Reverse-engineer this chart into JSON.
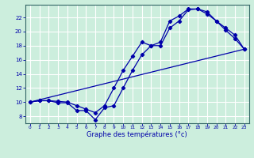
{
  "xlabel": "Graphe des températures (°c)",
  "bg_color": "#cceedd",
  "grid_color": "#aaddcc",
  "line_color": "#0000aa",
  "x_ticks": [
    0,
    1,
    2,
    3,
    4,
    5,
    6,
    7,
    8,
    9,
    10,
    11,
    12,
    13,
    14,
    15,
    16,
    17,
    18,
    19,
    20,
    21,
    22,
    23
  ],
  "y_ticks": [
    8,
    10,
    12,
    14,
    16,
    18,
    20,
    22
  ],
  "xlim": [
    -0.5,
    23.5
  ],
  "ylim": [
    7.0,
    23.8
  ],
  "series1_x": [
    0,
    1,
    2,
    3,
    4,
    5,
    6,
    7,
    8,
    9,
    10,
    11,
    12,
    13,
    14,
    15,
    16,
    17,
    18,
    19,
    20,
    21,
    22,
    23
  ],
  "series1_y": [
    10.0,
    10.2,
    10.2,
    9.9,
    9.9,
    8.8,
    8.8,
    7.5,
    9.2,
    9.5,
    12.0,
    14.5,
    16.7,
    18.0,
    18.0,
    20.5,
    21.5,
    23.1,
    23.2,
    22.8,
    21.5,
    20.2,
    19.0,
    17.5
  ],
  "series2_x": [
    0,
    1,
    2,
    3,
    4,
    5,
    6,
    7,
    8,
    9,
    10,
    11,
    12,
    13,
    14,
    15,
    16,
    17,
    18,
    19,
    20,
    21,
    22,
    23
  ],
  "series2_y": [
    10.0,
    10.2,
    10.2,
    10.1,
    10.0,
    9.5,
    9.0,
    8.5,
    9.5,
    12.0,
    14.5,
    16.5,
    18.5,
    18.0,
    18.5,
    21.5,
    22.2,
    23.2,
    23.2,
    22.5,
    21.5,
    20.5,
    19.5,
    17.5
  ],
  "series3_x": [
    0,
    23
  ],
  "series3_y": [
    10.0,
    17.5
  ]
}
